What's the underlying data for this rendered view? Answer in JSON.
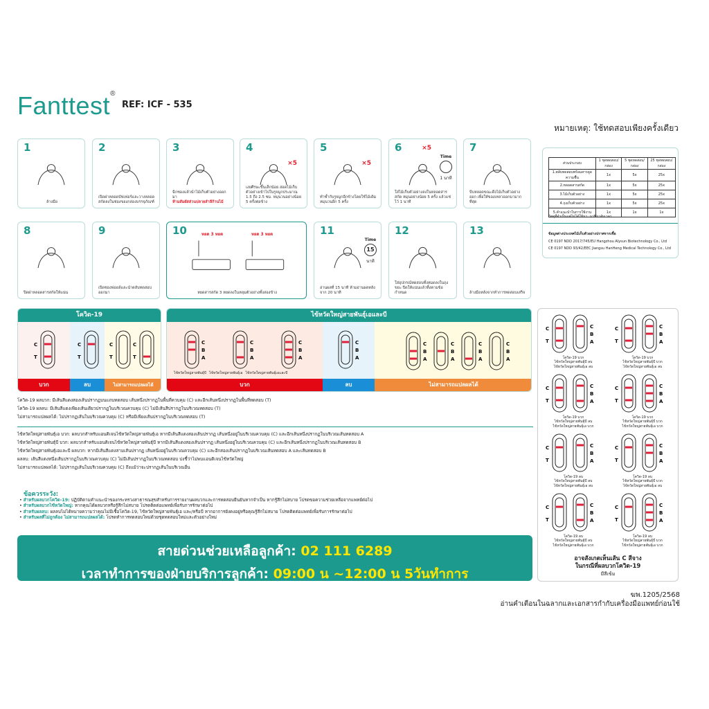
{
  "header": {
    "brand": "Fanttest",
    "registered": "®",
    "ref": "REF: ICF - 535",
    "note": "หมายเหตุ: ใช้ทดสอบเพียงครั้งเดียว"
  },
  "steps": [
    {
      "num": "1",
      "text": "ล้างมือ"
    },
    {
      "num": "2",
      "text": "เปิดฝาหลอดบัฟเฟอร์และวางหลอดสกัดลงในช่องของกล่องบรรจุภัณฑ์"
    },
    {
      "num": "3",
      "text": "ฉีกซองแล้วนำไม้เก็บตัวอย่างออกมา",
      "warn": "ห้ามสัมผัสส่วนปลายสำลีก้านไม้"
    },
    {
      "num": "4",
      "text": "เงยศีรษะขึ้นเล็กน้อย สอดไม้เก็บตัวอย่างเข้าไปในรูจมูกประมาณ 1.5 ถึง 2.5 ซม. หมุนวนอย่างน้อย 5 ครั้งต่อข้าง",
      "mark": "×5"
    },
    {
      "num": "5",
      "text": "ทำซ้ำกับรูจมูกอีกข้างโดยใช้ไม้เดิม หมุนวนอีก 5 ครั้ง",
      "mark": "×5"
    },
    {
      "num": "6",
      "text": "ใส่ไม้เก็บตัวอย่างลงในหลอดสารสกัด หมุนอย่างน้อย 5 ครั้ง แล้วแช่ไว้ 1 นาที",
      "mark": "×5",
      "time": "Time",
      "minute": "1 นาที"
    },
    {
      "num": "7",
      "text": "บีบหลอดขณะดึงไม้เก็บตัวอย่างออก เพื่อให้ของเหลวออกมามากที่สุด"
    },
    {
      "num": "8",
      "text": "ปิดฝาหลอดสารสกัดให้แน่น"
    },
    {
      "num": "9",
      "text": "เปิดซองฟอยล์และนำตลับทดสอบออกมา"
    },
    {
      "num": "10",
      "text": "หยดสารสกัด 3 หยดลงในหลุมตัวอย่างทั้งสองข้าง",
      "drops": "หยด 3 หยด"
    },
    {
      "num": "11",
      "text": "อ่านผลที่ 15 นาที ห้ามอ่านผลหลังจาก 20 นาที",
      "time": "Time",
      "minutes": "15",
      "unit": "นาที"
    },
    {
      "num": "12",
      "text": "ใส่อุปกรณ์ทดสอบทั้งหมดลงในถุงขยะ ปิดให้แน่นแล้วทิ้งตามข้อกำหนด"
    },
    {
      "num": "13",
      "text": "ล้างมือหลังจากทำการทดสอบเสร็จ"
    }
  ],
  "contents_table": {
    "headers": [
      "ส่วนประกอบ",
      "1 ชุดทดสอบ/กล่อง",
      "5 ชุดทดสอบ/กล่อง",
      "25 ชุดทดสอบ/กล่อง"
    ],
    "rows": [
      [
        "1.ตลับทดสอบพร้อมสารดูดความชื้น",
        "1x",
        "5x",
        "25x"
      ],
      [
        "2.หลอดสารสกัด",
        "1x",
        "5x",
        "25x"
      ],
      [
        "3.ไม้เก็บตัวอย่าง",
        "1x",
        "5x",
        "25x"
      ],
      [
        "4.ถุงเก็บตัวอย่าง",
        "1x",
        "5x",
        "25x"
      ],
      [
        "5.คำแนะนำในการใช้งาน",
        "1x",
        "1x",
        "1x"
      ]
    ],
    "footnote": "วัสดุที่จำเป็นแต่ไม่ได้ให้มา: นาฬิกาจับเวลา",
    "origin_title": "ข้อมูลต่างประเทศไม้เก็บตัวอย่างปราศจากเชื้อ",
    "origin_lines": [
      "CE 0197 NDD 2017/745/EU  Hangzhou Alysun Biotechnology Co., Ltd",
      "CE 0197 NDD 93/42/EEC  Jiangsu HanHeng Medical Technology Co., Ltd"
    ]
  },
  "results": {
    "covid": {
      "title": "โควิด-19",
      "positive": "บวก",
      "negative": "ลบ",
      "invalid": "ไม่สามารถแปลผลได้",
      "positive_strips": [
        [
          "C",
          "T"
        ]
      ],
      "negative_strips": [
        [
          "C"
        ]
      ],
      "invalid_strips": [
        [],
        [
          "T"
        ]
      ]
    },
    "flu": {
      "title": "ไข้หวัดใหญ่สายพันธุ์เอและบี",
      "positive": "บวก",
      "negative": "ลบ",
      "invalid": "ไม่สามารถแปลผลได้",
      "positive_strips": [
        [
          "C",
          "B"
        ],
        [
          "C",
          "A"
        ],
        [
          "C",
          "B",
          "A"
        ]
      ],
      "positive_captions": [
        "ไข้หวัดใหญ่สายพันธุ์บี",
        "ไข้หวัดใหญ่สายพันธุ์เอ",
        "ไข้หวัดใหญ่สายพันธุ์เอและบี"
      ],
      "negative_strips": [
        [
          "C"
        ]
      ],
      "invalid_strips": [
        [
          "B",
          "A"
        ],
        [
          "B"
        ],
        [
          "A"
        ],
        []
      ]
    },
    "colors": {
      "positive": "#e30613",
      "negative": "#1a8fd8",
      "invalid": "#ef8b3b",
      "teal": "#1d9a8e"
    }
  },
  "interpretation": {
    "covid": [
      "โควิด-19 ผลบวก: มีเส้นสีแดงสองเส้นปรากฏบนแถบทดสอบ เส้นหนึ่งปรากฏในพื้นที่ควบคุม (C) และอีกเส้นหนึ่งปรากฏในพื้นที่ทดสอบ (T)",
      "โควิด-19 ผลลบ: มีเส้นสีแดงเพียงเส้นเดียวปรากฏในบริเวณควบคุม (C) ไม่มีเส้นสีปรากฏในบริเวณทดสอบ (T)",
      "ไม่สามารถแปลผลได้: ไม่ปรากฏเส้นในบริเวณควบคุม (C) หรือมีเพียงเส้นปรากฏในบริเวณทดสอบ (T)"
    ],
    "flu": [
      "ไข้หวัดใหญ่สายพันธุ์เอ บวก: ผลบวกสำหรับแอนติเจนไข้หวัดใหญ่สายพันธุ์เอ หากมีเส้นสีแดงสองเส้นปรากฏ เส้นหนึ่งอยู่ในบริเวณควบคุม (C) และอีกเส้นหนึ่งปรากฏในบริเวณเส้นทดสอบ A",
      "ไข้หวัดใหญ่สายพันธุ์บี บวก: ผลบวกสำหรับแอนติเจนไข้หวัดใหญ่สายพันธุ์บี หากมีเส้นสีแดงสองเส้นปรากฏ เส้นหนึ่งอยู่ในบริเวณควบคุม (C) และอีกเส้นหนึ่งปรากฏในบริเวณเส้นทดสอบ B",
      "ไข้หวัดใหญ่สายพันธุ์เอและบี ผลบวก: หากมีเส้นสีแดงสามเส้นปรากฏ เส้นหนึ่งอยู่ในบริเวณควบคุม (C) และอีกสองเส้นปรากฏในบริเวณเส้นทดสอบ A และเส้นทดสอบ B",
      "ผลลบ: เส้นสีแดงหนึ่งเส้นปรากฏในบริเวณควบคุม (C) ไม่มีเส้นปรากฏในบริเวณทดสอบ บ่งชี้ว่าไม่พบแอนติเจนไข้หวัดใหญ่",
      "ไม่สามารถแปลผลได้: ไม่ปรากฏเส้นในบริเวณควบคุม (C) ถึงแม้ว่าจะปรากฏเส้นในบริเวณอื่น"
    ]
  },
  "precautions": {
    "title": "ข้อควรระวัง:",
    "items": [
      {
        "label": "สำหรับผลบวกโควิด-19:",
        "text": "ปฏิบัติตามคำแนะนำของกระทรวงสาธารณสุขสำหรับการรายงานผลบวกและการทดสอบยืนยันหากจำเป็น หากรู้สึกไม่สบาย โปรดขอความช่วยเหลือจากแพทย์ต่อไป"
      },
      {
        "label": "สำหรับผลบวกไข้หวัดใหญ่:",
        "text": "หากคุณได้ผลบวกหรือรู้สึกไม่สบาย โปรดติดต่อแพทย์เพื่อรับการรักษาต่อไป"
      },
      {
        "label": "สำหรับผลลบ:",
        "text": "ผลลบไม่ได้หมายความว่าคุณไม่มีเชื้อโควิด-19, ไข้หวัดใหญ่สายพันธุ์เอ และ/หรือบี หากอาการยังคงอยู่หรือคุณรู้สึกไม่สบาย โปรดติดต่อแพทย์เพื่อรับการรักษาต่อไป"
      },
      {
        "label": "สำหรับผลที่ไม่ถูกต้อง ไม่สามารถแปลผลได้:",
        "text": "โปรดทำการทดสอบใหม่ด้วยชุดทดสอบใหม่และตัวอย่างใหม่"
      }
    ]
  },
  "hotline": {
    "label": "สายด่วนช่วยเหลือลูกค้า: ",
    "number": "02 111 6289",
    "hours_label": "เวลาทำการของฝ่ายบริการลูกค้า: ",
    "hours": "09:00 น ~12:00 น 5วันทำการ"
  },
  "combos": [
    {
      "left": [
        "C",
        "T"
      ],
      "right": [
        "C"
      ],
      "caption": [
        "โควิด-19 บวก",
        "ไข้หวัดใหญ่สายพันธุ์บี ลบ",
        "ไข้หวัดใหญ่สายพันธุ์เอ ลบ"
      ]
    },
    {
      "left": [
        "C",
        "T"
      ],
      "right": [
        "C",
        "B"
      ],
      "caption": [
        "โควิด-19 บวก",
        "ไข้หวัดใหญ่สายพันธุ์บี บวก",
        "ไข้หวัดใหญ่สายพันธุ์เอ ลบ"
      ]
    },
    {
      "left": [
        "C",
        "T"
      ],
      "right": [
        "C",
        "A"
      ],
      "caption": [
        "โควิด-19 บวก",
        "ไข้หวัดใหญ่สายพันธุ์บี ลบ",
        "ไข้หวัดใหญ่สายพันธุ์เอ บวก"
      ]
    },
    {
      "left": [
        "C",
        "T"
      ],
      "right": [
        "C",
        "B",
        "A"
      ],
      "caption": [
        "โควิด-19 บวก",
        "ไข้หวัดใหญ่สายพันธุ์บี บวก",
        "ไข้หวัดใหญ่สายพันธุ์เอ บวก"
      ]
    },
    {
      "left": [
        "C"
      ],
      "right": [
        "C"
      ],
      "caption": [
        "โควิด-19 ลบ",
        "ไข้หวัดใหญ่สายพันธุ์บี ลบ",
        "ไข้หวัดใหญ่สายพันธุ์เอ ลบ"
      ]
    },
    {
      "left": [
        "C"
      ],
      "right": [
        "C",
        "B"
      ],
      "caption": [
        "โควิด-19 ลบ",
        "ไข้หวัดใหญ่สายพันธุ์บี บวก",
        "ไข้หวัดใหญ่สายพันธุ์เอ ลบ"
      ]
    },
    {
      "left": [
        "C"
      ],
      "right": [
        "C",
        "A"
      ],
      "caption": [
        "โควิด-19 ลบ",
        "ไข้หวัดใหญ่สายพันธุ์บี ลบ",
        "ไข้หวัดใหญ่สายพันธุ์เอ บวก"
      ]
    },
    {
      "left": [
        "C"
      ],
      "right": [
        "C",
        "B",
        "A"
      ],
      "caption": [
        "โควิด-19 ลบ",
        "ไข้หวัดใหญ่สายพันธุ์บี บวก",
        "ไข้หวัดใหญ่สายพันธุ์เอ บวก"
      ]
    }
  ],
  "combo_note": [
    "อาจสังเกตเห็นเส้น C สีจาง",
    "ในกรณีที่ผลบวกโควิด-19",
    "มีสีเข้ม"
  ],
  "footer": {
    "reg": "ฆพ.1205/2568",
    "warning": "อ่านคำเตือนในฉลากและเอกสารกำกับเครื่องมือแพทย์ก่อนใช้"
  }
}
